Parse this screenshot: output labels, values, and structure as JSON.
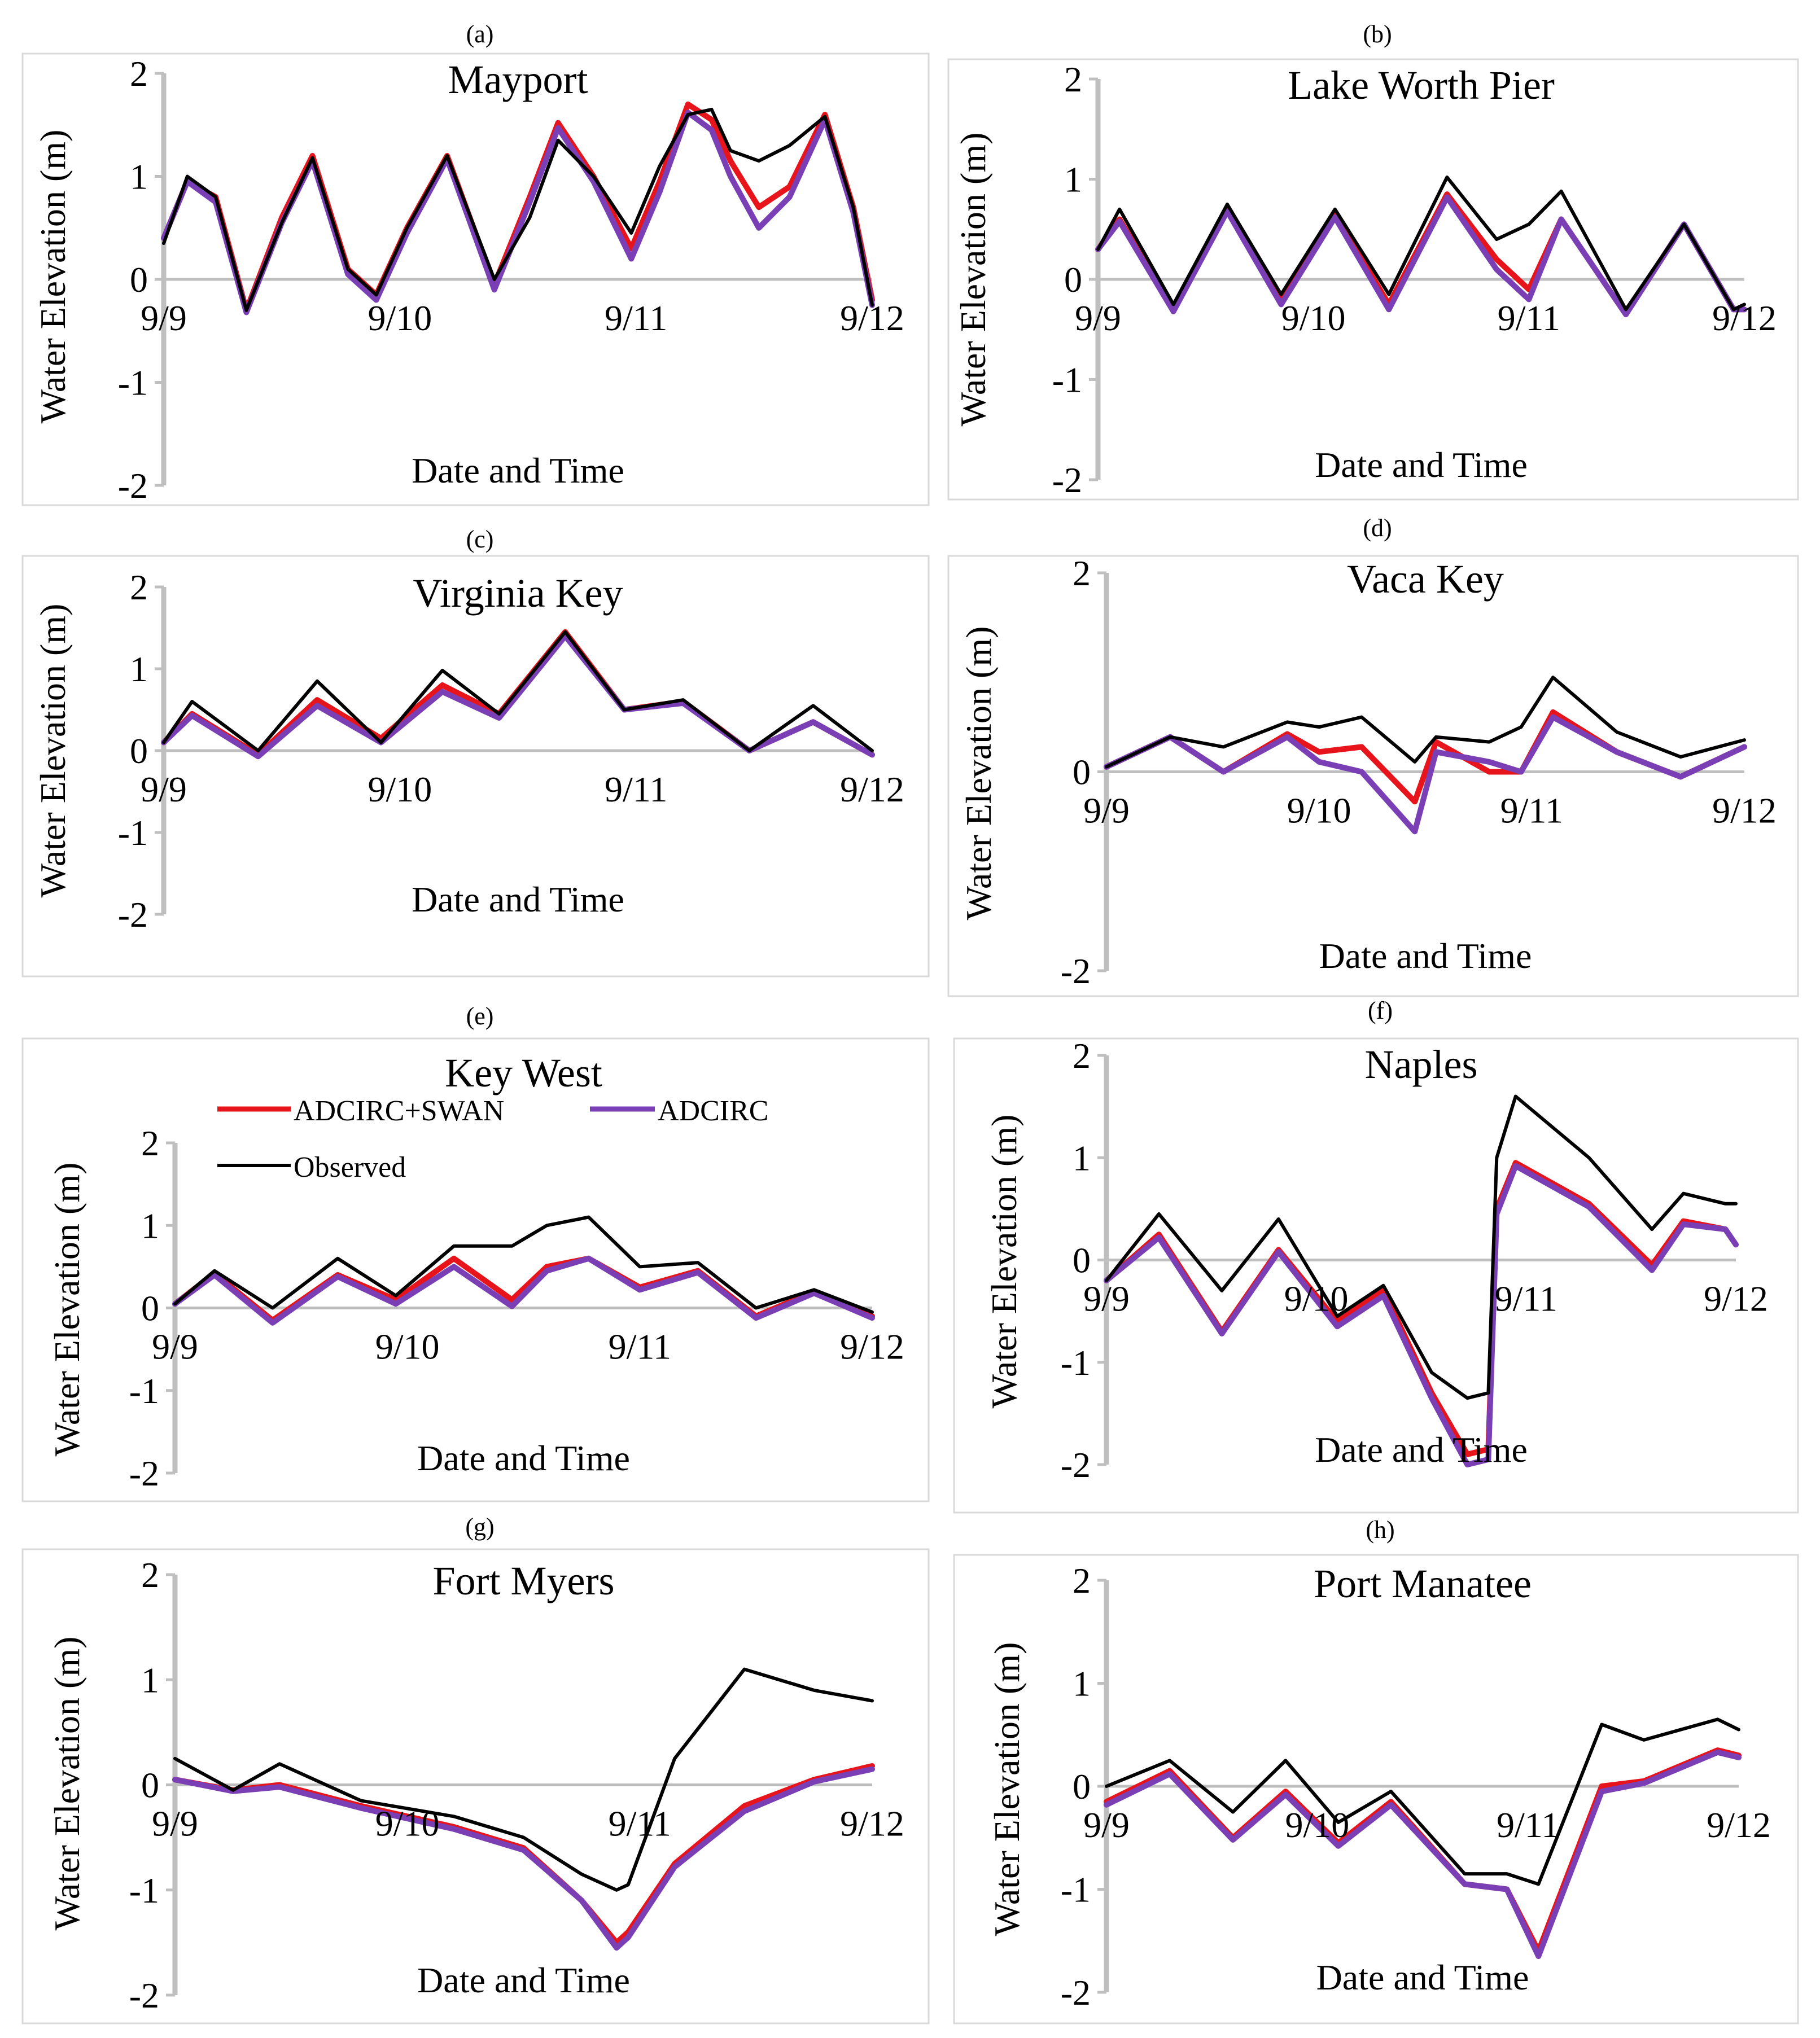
{
  "figure": {
    "x_tick_labels": [
      "9/9",
      "9/10",
      "9/11",
      "9/12"
    ],
    "xlabel": "Date and Time",
    "ylabel": "Water Elevation (m)",
    "y_tick_labels": [
      "2",
      "1",
      "0",
      "-1",
      "-2"
    ]
  },
  "legend": {
    "placement": "inside panel (e), top-left",
    "entries": [
      {
        "name": "ADCIRC+SWAN",
        "color": "#e8141b"
      },
      {
        "name": "ADCIRC",
        "color": "#7a3fb5"
      },
      {
        "name": "Observed",
        "color": "#000000"
      }
    ]
  },
  "chart_data": [
    {
      "type": "line",
      "panel_label": "(a)",
      "title": "Mayport",
      "xlabel": "Date and Time",
      "ylabel": "Water Elevation (m)",
      "xlim": [
        0,
        3
      ],
      "ylim": [
        -2,
        2
      ],
      "y_ticks": [
        2,
        1,
        0,
        -1,
        -2
      ],
      "x_categories": [
        "9/9",
        "9/10",
        "9/11",
        "9/12"
      ],
      "x": [
        0,
        0.1,
        0.22,
        0.35,
        0.5,
        0.63,
        0.78,
        0.9,
        1.03,
        1.2,
        1.4,
        1.55,
        1.67,
        1.82,
        1.98,
        2.1,
        2.22,
        2.32,
        2.4,
        2.52,
        2.65,
        2.8,
        2.92,
        3.0
      ],
      "series": [
        {
          "name": "ADCIRC+SWAN",
          "color": "#e8141b",
          "values": [
            0.4,
            0.95,
            0.8,
            -0.3,
            0.6,
            1.2,
            0.1,
            -0.15,
            0.5,
            1.2,
            -0.05,
            0.8,
            1.52,
            1.0,
            0.3,
            0.95,
            1.7,
            1.55,
            1.15,
            0.7,
            0.9,
            1.6,
            0.7,
            -0.2
          ]
        },
        {
          "name": "ADCIRC",
          "color": "#7a3fb5",
          "values": [
            0.4,
            0.95,
            0.75,
            -0.32,
            0.55,
            1.15,
            0.05,
            -0.2,
            0.45,
            1.17,
            -0.1,
            0.75,
            1.47,
            0.95,
            0.2,
            0.85,
            1.62,
            1.45,
            1.0,
            0.5,
            0.8,
            1.55,
            0.65,
            -0.25
          ]
        },
        {
          "name": "Observed",
          "color": "#000000",
          "values": [
            0.35,
            1.0,
            0.8,
            -0.3,
            0.55,
            1.18,
            0.1,
            -0.15,
            0.5,
            1.2,
            0.0,
            0.6,
            1.35,
            1.0,
            0.45,
            1.1,
            1.6,
            1.65,
            1.25,
            1.15,
            1.3,
            1.58,
            0.7,
            -0.25
          ]
        }
      ]
    },
    {
      "type": "line",
      "panel_label": "(b)",
      "title": "Lake Worth Pier",
      "xlabel": "Date and Time",
      "ylabel": "Water Elevation (m)",
      "xlim": [
        0,
        3
      ],
      "ylim": [
        -2,
        2
      ],
      "y_ticks": [
        2,
        1,
        0,
        -1,
        -2
      ],
      "x_categories": [
        "9/9",
        "9/10",
        "9/11",
        "9/12"
      ],
      "x": [
        0,
        0.1,
        0.35,
        0.6,
        0.85,
        1.1,
        1.35,
        1.62,
        1.85,
        2.0,
        2.15,
        2.45,
        2.72,
        2.95,
        3.0
      ],
      "series": [
        {
          "name": "ADCIRC+SWAN",
          "color": "#e8141b",
          "values": [
            0.3,
            0.6,
            -0.3,
            0.7,
            -0.2,
            0.65,
            -0.25,
            0.85,
            0.2,
            -0.1,
            0.6,
            -0.35,
            0.55,
            -0.3,
            -0.3
          ]
        },
        {
          "name": "ADCIRC",
          "color": "#7a3fb5",
          "values": [
            0.3,
            0.58,
            -0.32,
            0.68,
            -0.25,
            0.62,
            -0.3,
            0.82,
            0.1,
            -0.2,
            0.6,
            -0.35,
            0.55,
            -0.3,
            -0.3
          ]
        },
        {
          "name": "Observed",
          "color": "#000000",
          "values": [
            0.3,
            0.7,
            -0.25,
            0.75,
            -0.15,
            0.7,
            -0.15,
            1.02,
            0.4,
            0.55,
            0.88,
            -0.3,
            0.55,
            -0.3,
            -0.25
          ]
        }
      ]
    },
    {
      "type": "line",
      "panel_label": "(c)",
      "title": "Virginia Key",
      "xlabel": "Date and Time",
      "ylabel": "Water Elevation (m)",
      "xlim": [
        0,
        3
      ],
      "ylim": [
        -2,
        2
      ],
      "y_ticks": [
        2,
        1,
        0,
        -1,
        -2
      ],
      "x_categories": [
        "9/9",
        "9/10",
        "9/11",
        "9/12"
      ],
      "x": [
        0,
        0.12,
        0.4,
        0.65,
        0.92,
        1.18,
        1.42,
        1.7,
        1.95,
        2.2,
        2.48,
        2.75,
        3.0
      ],
      "series": [
        {
          "name": "ADCIRC+SWAN",
          "color": "#e8141b",
          "values": [
            0.1,
            0.45,
            -0.05,
            0.62,
            0.15,
            0.8,
            0.45,
            1.45,
            0.5,
            0.6,
            0.0,
            0.35,
            -0.05
          ]
        },
        {
          "name": "ADCIRC",
          "color": "#7a3fb5",
          "values": [
            0.1,
            0.43,
            -0.07,
            0.55,
            0.1,
            0.72,
            0.4,
            1.4,
            0.5,
            0.58,
            0.0,
            0.35,
            -0.05
          ]
        },
        {
          "name": "Observed",
          "color": "#000000",
          "values": [
            0.1,
            0.6,
            0.0,
            0.85,
            0.1,
            0.98,
            0.45,
            1.45,
            0.5,
            0.62,
            0.0,
            0.55,
            0.0
          ]
        }
      ]
    },
    {
      "type": "line",
      "panel_label": "(d)",
      "title": "Vaca Key",
      "xlabel": "Date and Time",
      "ylabel": "Water Elevation (m)",
      "xlim": [
        0,
        3
      ],
      "ylim": [
        -2,
        2
      ],
      "y_ticks": [
        2,
        0,
        -2
      ],
      "x_categories": [
        "9/9",
        "9/10",
        "9/11",
        "9/12"
      ],
      "x": [
        0,
        0.3,
        0.55,
        0.85,
        1.0,
        1.2,
        1.45,
        1.55,
        1.8,
        1.95,
        2.1,
        2.4,
        2.7,
        3.0
      ],
      "series": [
        {
          "name": "ADCIRC+SWAN",
          "color": "#e8141b",
          "values": [
            0.05,
            0.35,
            0.0,
            0.38,
            0.2,
            0.25,
            -0.3,
            0.3,
            0.0,
            0.0,
            0.6,
            0.2,
            -0.05,
            0.25
          ]
        },
        {
          "name": "ADCIRC",
          "color": "#7a3fb5",
          "values": [
            0.05,
            0.35,
            0.0,
            0.35,
            0.1,
            0.0,
            -0.6,
            0.2,
            0.1,
            0.0,
            0.55,
            0.2,
            -0.05,
            0.25
          ]
        },
        {
          "name": "Observed",
          "color": "#000000",
          "values": [
            0.05,
            0.35,
            0.25,
            0.5,
            0.45,
            0.55,
            0.1,
            0.35,
            0.3,
            0.45,
            0.95,
            0.4,
            0.15,
            0.32
          ]
        }
      ]
    },
    {
      "type": "line",
      "panel_label": "(e)",
      "title": "Key West",
      "xlabel": "Date and Time",
      "ylabel": "Water Elevation (m)",
      "xlim": [
        0,
        3
      ],
      "ylim": [
        -2,
        2
      ],
      "y_ticks": [
        2,
        1,
        0,
        -1,
        -2
      ],
      "x_categories": [
        "9/9",
        "9/10",
        "9/11",
        "9/12"
      ],
      "x": [
        0,
        0.17,
        0.42,
        0.7,
        0.95,
        1.2,
        1.45,
        1.6,
        1.78,
        2.0,
        2.25,
        2.5,
        2.75,
        3.0
      ],
      "series": [
        {
          "name": "ADCIRC+SWAN",
          "color": "#e8141b",
          "values": [
            0.05,
            0.42,
            -0.15,
            0.4,
            0.1,
            0.6,
            0.1,
            0.5,
            0.6,
            0.25,
            0.45,
            -0.1,
            0.2,
            -0.1
          ]
        },
        {
          "name": "ADCIRC",
          "color": "#7a3fb5",
          "values": [
            0.05,
            0.4,
            -0.18,
            0.38,
            0.05,
            0.5,
            0.02,
            0.45,
            0.6,
            0.22,
            0.43,
            -0.12,
            0.18,
            -0.12
          ]
        },
        {
          "name": "Observed",
          "color": "#000000",
          "values": [
            0.05,
            0.45,
            0.0,
            0.6,
            0.15,
            0.75,
            0.75,
            1.0,
            1.1,
            0.5,
            0.55,
            0.0,
            0.22,
            -0.05
          ]
        }
      ]
    },
    {
      "type": "line",
      "panel_label": "(f)",
      "title": "Naples",
      "xlabel": "Date and Time",
      "ylabel": "Water Elevation (m)",
      "xlim": [
        0,
        3
      ],
      "ylim": [
        -2,
        2
      ],
      "y_ticks": [
        2,
        1,
        0,
        -1,
        -2
      ],
      "x_categories": [
        "9/9",
        "9/10",
        "9/11",
        "9/12"
      ],
      "x": [
        0,
        0.25,
        0.55,
        0.82,
        1.1,
        1.32,
        1.55,
        1.72,
        1.82,
        1.86,
        1.95,
        2.3,
        2.6,
        2.75,
        2.95,
        3.0
      ],
      "series": [
        {
          "name": "ADCIRC+SWAN",
          "color": "#e8141b",
          "values": [
            -0.2,
            0.25,
            -0.7,
            0.1,
            -0.6,
            -0.3,
            -1.3,
            -1.9,
            -1.85,
            0.5,
            0.95,
            0.55,
            -0.05,
            0.38,
            0.3,
            0.15
          ]
        },
        {
          "name": "ADCIRC",
          "color": "#7a3fb5",
          "values": [
            -0.2,
            0.22,
            -0.72,
            0.08,
            -0.65,
            -0.35,
            -1.35,
            -2.0,
            -1.95,
            0.45,
            0.92,
            0.52,
            -0.1,
            0.35,
            0.3,
            0.15
          ]
        },
        {
          "name": "Observed",
          "color": "#000000",
          "values": [
            -0.2,
            0.45,
            -0.3,
            0.4,
            -0.55,
            -0.25,
            -1.1,
            -1.35,
            -1.3,
            1.0,
            1.6,
            1.0,
            0.3,
            0.65,
            0.55,
            0.55
          ]
        }
      ]
    },
    {
      "type": "line",
      "panel_label": "(g)",
      "title": "Fort Myers",
      "xlabel": "Date and Time",
      "ylabel": "Water Elevation (m)",
      "xlim": [
        0,
        3
      ],
      "ylim": [
        -2,
        2
      ],
      "y_ticks": [
        2,
        1,
        0,
        -1,
        -2
      ],
      "x_categories": [
        "9/9",
        "9/10",
        "9/11",
        "9/12"
      ],
      "x": [
        0,
        0.25,
        0.45,
        0.8,
        1.2,
        1.5,
        1.75,
        1.9,
        1.95,
        2.15,
        2.45,
        2.75,
        3.0
      ],
      "series": [
        {
          "name": "ADCIRC+SWAN",
          "color": "#e8141b",
          "values": [
            0.05,
            -0.05,
            0.0,
            -0.2,
            -0.4,
            -0.6,
            -1.1,
            -1.5,
            -1.4,
            -0.75,
            -0.2,
            0.05,
            0.18
          ]
        },
        {
          "name": "ADCIRC",
          "color": "#7a3fb5",
          "values": [
            0.05,
            -0.06,
            -0.02,
            -0.22,
            -0.42,
            -0.62,
            -1.1,
            -1.55,
            -1.45,
            -0.78,
            -0.25,
            0.03,
            0.15
          ]
        },
        {
          "name": "Observed",
          "color": "#000000",
          "values": [
            0.25,
            -0.05,
            0.2,
            -0.15,
            -0.3,
            -0.5,
            -0.85,
            -1.0,
            -0.95,
            0.25,
            1.1,
            0.9,
            0.8
          ]
        }
      ]
    },
    {
      "type": "line",
      "panel_label": "(h)",
      "title": "Port Manatee",
      "xlabel": "Date and Time",
      "ylabel": "Water Elevation (m)",
      "xlim": [
        0,
        3
      ],
      "ylim": [
        -2,
        2
      ],
      "y_ticks": [
        2,
        1,
        0,
        -1,
        -2
      ],
      "x_categories": [
        "9/9",
        "9/10",
        "9/11",
        "9/12"
      ],
      "x": [
        0,
        0.3,
        0.6,
        0.85,
        1.1,
        1.35,
        1.7,
        1.9,
        2.05,
        2.35,
        2.55,
        2.9,
        3.0
      ],
      "series": [
        {
          "name": "ADCIRC+SWAN",
          "color": "#e8141b",
          "values": [
            -0.15,
            0.15,
            -0.5,
            -0.05,
            -0.55,
            -0.15,
            -0.95,
            -1.0,
            -1.6,
            0.0,
            0.05,
            0.35,
            0.3
          ]
        },
        {
          "name": "ADCIRC",
          "color": "#7a3fb5",
          "values": [
            -0.18,
            0.12,
            -0.52,
            -0.08,
            -0.58,
            -0.18,
            -0.95,
            -1.0,
            -1.65,
            -0.05,
            0.03,
            0.33,
            0.28
          ]
        },
        {
          "name": "Observed",
          "color": "#000000",
          "values": [
            0.0,
            0.25,
            -0.25,
            0.25,
            -0.35,
            -0.05,
            -0.85,
            -0.85,
            -0.95,
            0.6,
            0.45,
            0.65,
            0.55
          ]
        }
      ]
    }
  ]
}
